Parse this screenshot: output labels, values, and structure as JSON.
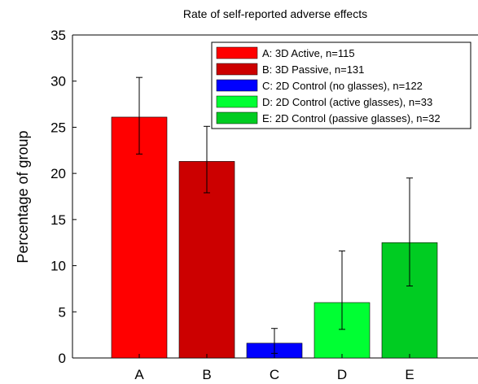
{
  "chart_data": {
    "type": "bar",
    "title": "Rate of self-reported adverse effects",
    "xlabel": "",
    "ylabel": "Percentage of group",
    "ylim": [
      0,
      35
    ],
    "yticks": [
      0,
      5,
      10,
      15,
      20,
      25,
      30,
      35
    ],
    "categories": [
      "A",
      "B",
      "C",
      "D",
      "E"
    ],
    "values": [
      26.1,
      21.3,
      1.6,
      6.0,
      12.5
    ],
    "error_low": [
      22.1,
      17.9,
      0.5,
      3.1,
      7.8
    ],
    "error_high": [
      30.4,
      25.1,
      3.2,
      11.6,
      19.5
    ],
    "colors": [
      "#ff0000",
      "#cc0000",
      "#0000ff",
      "#00ff33",
      "#00cc22"
    ],
    "legend": {
      "placement": "top-right",
      "entries": [
        "A: 3D Active, n=115",
        "B: 3D Passive, n=131",
        "C: 2D Control (no glasses), n=122",
        "D: 2D Control (active glasses), n=33",
        "E: 2D Control (passive glasses), n=32"
      ]
    },
    "grid": false
  }
}
